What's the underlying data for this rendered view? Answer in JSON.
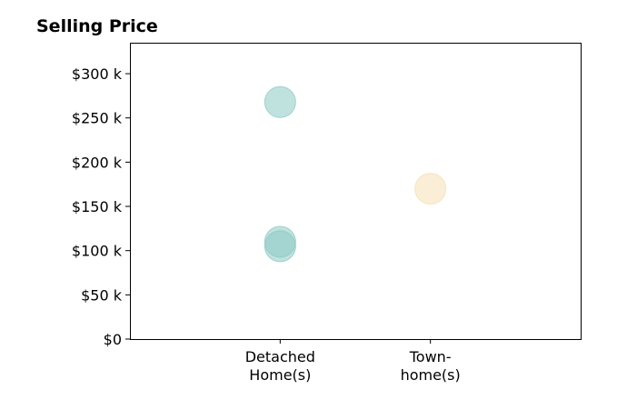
{
  "chart_data": {
    "type": "scatter",
    "title": "Selling Price",
    "xlabel": "",
    "ylabel": "",
    "categories": [
      {
        "lines": [
          "Detached",
          "Home(s)"
        ]
      },
      {
        "lines": [
          "Town-",
          "home(s)"
        ]
      }
    ],
    "x_range": [
      -1,
      2
    ],
    "ylim": [
      0,
      335000
    ],
    "y_ticks": [
      {
        "value": 0,
        "label": "$0"
      },
      {
        "value": 50000,
        "label": "$50 k"
      },
      {
        "value": 100000,
        "label": "$100 k"
      },
      {
        "value": 150000,
        "label": "$150 k"
      },
      {
        "value": 200000,
        "label": "$200 k"
      },
      {
        "value": 250000,
        "label": "$250 k"
      },
      {
        "value": 300000,
        "label": "$300 k"
      }
    ],
    "points": [
      {
        "category": 0,
        "y": 268000,
        "color": "#8dcbc4"
      },
      {
        "category": 0,
        "y": 110000,
        "color": "#8dcbc4"
      },
      {
        "category": 0,
        "y": 105000,
        "color": "#8dcbc4"
      },
      {
        "category": 1,
        "y": 170000,
        "color": "#f5e0b5"
      }
    ],
    "grid": false,
    "legend": "none"
  }
}
